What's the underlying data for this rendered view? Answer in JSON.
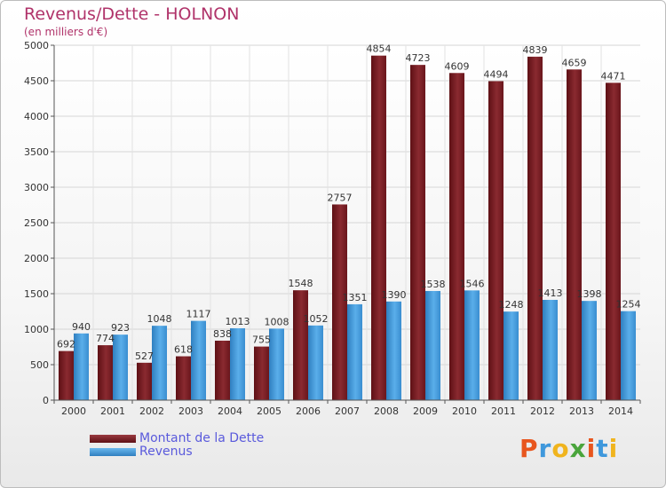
{
  "header": {
    "title": "Revenus/Dette - HOLNON",
    "subtitle": "(en milliers d'€)"
  },
  "chart_data": {
    "type": "bar",
    "title": "Revenus/Dette - HOLNON",
    "subtitle": "(en milliers d'€)",
    "categories": [
      "2000",
      "2001",
      "2002",
      "2003",
      "2004",
      "2005",
      "2006",
      "2007",
      "2008",
      "2009",
      "2010",
      "2011",
      "2012",
      "2013",
      "2014"
    ],
    "series": [
      {
        "name": "Montant de la Dette",
        "color": "#7a1e24",
        "values": [
          692,
          774,
          527,
          618,
          838,
          755,
          1548,
          2757,
          4854,
          4723,
          4609,
          4494,
          4839,
          4659,
          4471
        ]
      },
      {
        "name": "Revenus",
        "color": "#3f98dc",
        "values": [
          940,
          923,
          1048,
          1117,
          1013,
          1008,
          1052,
          1351,
          1390,
          1538,
          1546,
          1248,
          1413,
          1398,
          1254
        ]
      }
    ],
    "ylim": [
      0,
      5000
    ],
    "yticks": [
      0,
      500,
      1000,
      1500,
      2000,
      2500,
      3000,
      3500,
      4000,
      4500,
      5000
    ],
    "grid": true,
    "legend_position": "bottom-left",
    "xlabel": "",
    "ylabel": ""
  },
  "legend": {
    "items": [
      {
        "label": "Montant de la Dette",
        "color": "#7a1e24"
      },
      {
        "label": "Revenus",
        "color": "#3f98dc"
      }
    ]
  },
  "logo": {
    "letters": [
      "P",
      "r",
      "o",
      "x",
      "i",
      "t",
      "i"
    ],
    "colors": [
      "#e8561e",
      "#3f98dc",
      "#f0b41e",
      "#4aa53c",
      "#e8561e",
      "#3f98dc",
      "#f0b41e"
    ]
  }
}
